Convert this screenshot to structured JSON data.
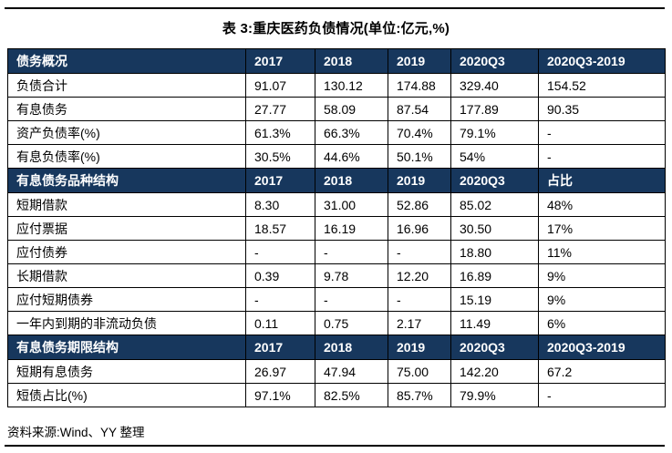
{
  "title": "表 3:重庆医药负债情况(单位:亿元,%)",
  "source": "资料来源:Wind、YY 整理",
  "colors": {
    "header_bg": "#17375D",
    "header_text": "#FFFFFF",
    "border": "#000000"
  },
  "table": {
    "sections": [
      {
        "header": [
          "债务概况",
          "2017",
          "2018",
          "2019",
          "2020Q3",
          "2020Q3-2019"
        ],
        "rows": [
          [
            "负债合计",
            "91.07",
            "130.12",
            "174.88",
            "329.40",
            "154.52"
          ],
          [
            "有息债务",
            "27.77",
            "58.09",
            "87.54",
            "177.89",
            "90.35"
          ],
          [
            "资产负债率(%)",
            "61.3%",
            "66.3%",
            "70.4%",
            "79.1%",
            "-"
          ],
          [
            "有息负债率(%)",
            "30.5%",
            "44.6%",
            "50.1%",
            "54%",
            "-"
          ]
        ]
      },
      {
        "header": [
          "有息债务品种结构",
          "2017",
          "2018",
          "2019",
          "2020Q3",
          "占比"
        ],
        "rows": [
          [
            "短期借款",
            "8.30",
            "31.00",
            "52.86",
            "85.02",
            "48%"
          ],
          [
            "应付票据",
            "18.57",
            "16.19",
            "16.96",
            "30.50",
            "17%"
          ],
          [
            "应付债券",
            "-",
            "-",
            "-",
            "18.80",
            "11%"
          ],
          [
            "长期借款",
            "0.39",
            "9.78",
            "12.20",
            "16.89",
            "9%"
          ],
          [
            "应付短期债券",
            "-",
            "-",
            "-",
            "15.19",
            "9%"
          ],
          [
            "一年内到期的非流动负债",
            "0.11",
            "0.75",
            "2.17",
            "11.49",
            "6%"
          ]
        ]
      },
      {
        "header": [
          "有息债务期限结构",
          "2017",
          "2018",
          "2019",
          "2020Q3",
          "2020Q3-2019"
        ],
        "rows": [
          [
            "短期有息债务",
            "26.97",
            "47.94",
            "75.00",
            "142.20",
            "67.2"
          ],
          [
            "短债占比(%)",
            "97.1%",
            "82.5%",
            "85.7%",
            "79.9%",
            "-"
          ]
        ]
      }
    ]
  }
}
